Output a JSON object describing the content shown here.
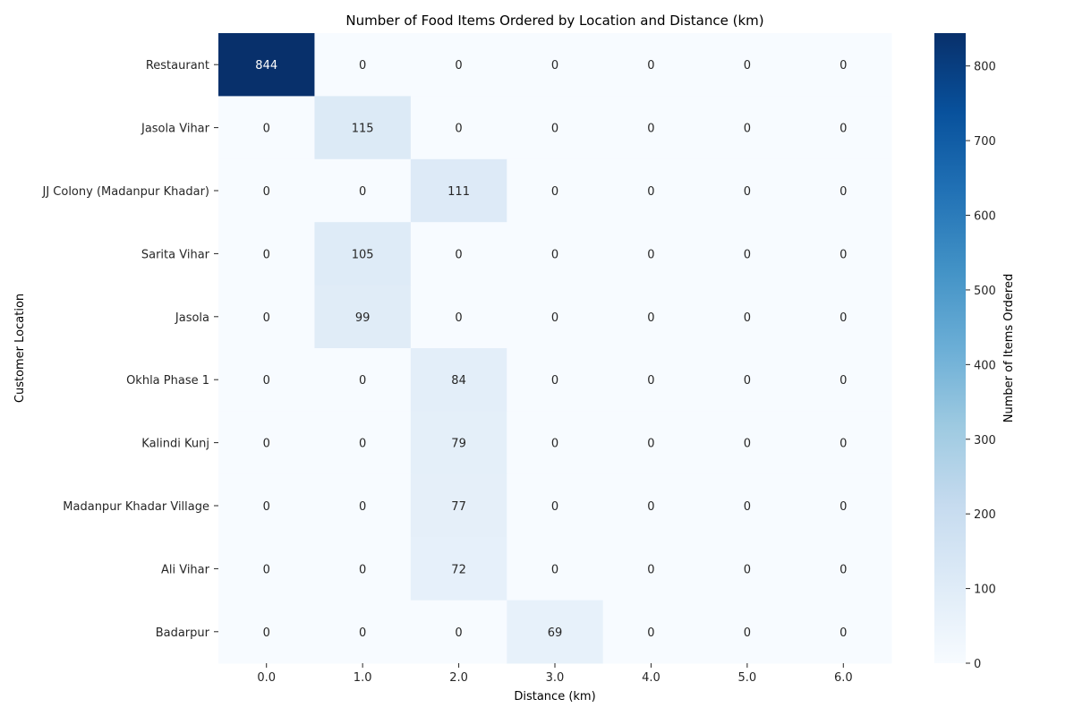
{
  "chart_data": {
    "type": "heatmap",
    "title": "Number of Food Items Ordered by Location and Distance (km)",
    "xlabel": "Distance (km)",
    "ylabel": "Customer Location",
    "x": [
      "0.0",
      "1.0",
      "2.0",
      "3.0",
      "4.0",
      "5.0",
      "6.0"
    ],
    "y": [
      "Restaurant",
      "Jasola Vihar",
      "JJ Colony (Madanpur Khadar)",
      "Sarita Vihar",
      "Jasola",
      "Okhla Phase 1",
      "Kalindi Kunj",
      "Madanpur Khadar Village",
      "Ali Vihar",
      "Badarpur"
    ],
    "values": [
      [
        844,
        0,
        0,
        0,
        0,
        0,
        0
      ],
      [
        0,
        115,
        0,
        0,
        0,
        0,
        0
      ],
      [
        0,
        0,
        111,
        0,
        0,
        0,
        0
      ],
      [
        0,
        105,
        0,
        0,
        0,
        0,
        0
      ],
      [
        0,
        99,
        0,
        0,
        0,
        0,
        0
      ],
      [
        0,
        0,
        84,
        0,
        0,
        0,
        0
      ],
      [
        0,
        0,
        79,
        0,
        0,
        0,
        0
      ],
      [
        0,
        0,
        77,
        0,
        0,
        0,
        0
      ],
      [
        0,
        0,
        72,
        0,
        0,
        0,
        0
      ],
      [
        0,
        0,
        0,
        69,
        0,
        0,
        0
      ]
    ],
    "colorbar": {
      "label": "Number of Items Ordered",
      "range": [
        0,
        844
      ],
      "ticks": [
        0,
        100,
        200,
        300,
        400,
        500,
        600,
        700,
        800
      ],
      "colormap": "Blues"
    },
    "grid": false,
    "legend": "colorbar-right"
  }
}
